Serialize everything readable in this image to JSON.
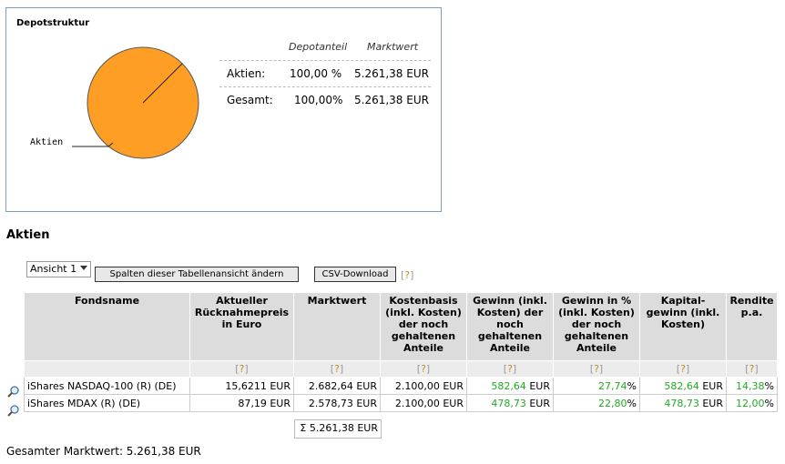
{
  "depot": {
    "title": "Depotstruktur",
    "pie_label": "Aktien",
    "pie_color": "#ff9e25",
    "chart_data": {
      "type": "pie",
      "categories": [
        "Aktien"
      ],
      "values": [
        100.0
      ]
    },
    "summary": {
      "col_share": "Depotanteil",
      "col_value": "Marktwert",
      "rows": [
        {
          "label": "Aktien:",
          "share": "100,00 %",
          "value": "5.261,38 EUR"
        },
        {
          "label": "Gesamt:",
          "share": "100,00%",
          "value": "5.261,38 EUR"
        }
      ]
    }
  },
  "section_title": "Aktien",
  "toolbar": {
    "view_value": "Ansicht 1",
    "change_columns_label": "Spalten dieser Tabellenansicht ändern",
    "csv_label": "CSV-Download",
    "help_q": "?"
  },
  "table": {
    "headers": {
      "fondsname": "Fondsname",
      "preis": "Aktueller Rücknahmepreis in Euro",
      "marktwert": "Marktwert",
      "kostenbasis": "Kostenbasis (inkl. Kosten) der noch gehaltenen Anteile",
      "gewinn": "Gewinn (inkl. Kosten) der noch gehaltenen Anteile",
      "gewinn_pct": "Gewinn in % (inkl. Kosten) der noch gehaltenen Anteile",
      "kapitalgewinn": "Kapital-gewinn (inkl. Kosten)",
      "rendite": "Rendite p.a."
    },
    "rows": [
      {
        "name": "iShares NASDAQ-100 (R) (DE)",
        "preis": "15,6211 EUR",
        "marktwert": "2.682,64 EUR",
        "kostenbasis": "2.100,00 EUR",
        "gewinn": "582,64",
        "gewinn_pct": "27,74",
        "kapitalgewinn": "582,64",
        "rendite": "14,38"
      },
      {
        "name": "iShares MDAX (R) (DE)",
        "preis": "87,19 EUR",
        "marktwert": "2.578,73 EUR",
        "kostenbasis": "2.100,00 EUR",
        "gewinn": "478,73",
        "gewinn_pct": "22,80",
        "kapitalgewinn": "478,73",
        "rendite": "12,00"
      }
    ],
    "currency": "EUR",
    "percent": "%",
    "sum": "Σ 5.261,38 EUR"
  },
  "footer": {
    "total": "Gesamter Marktwert: 5.261,38 EUR"
  }
}
